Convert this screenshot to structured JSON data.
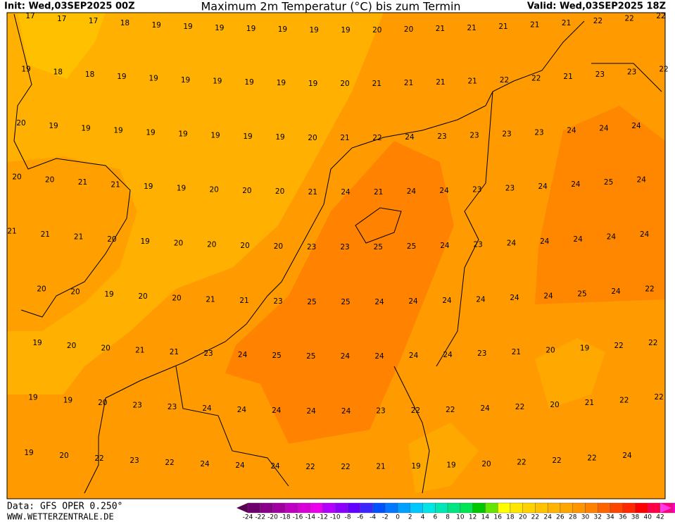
{
  "header": {
    "init": "Init: Wed,03SEP2025 00Z",
    "title": "Maximum 2m Temperatur (°C) bis zum Termin",
    "valid": "Valid: Wed,03SEP2025 18Z"
  },
  "map": {
    "rows": [
      [
        17,
        17,
        17,
        18,
        19,
        19,
        19,
        19,
        19,
        19,
        19,
        20,
        20,
        21,
        21,
        21,
        21,
        21,
        22,
        22,
        22
      ],
      [
        19,
        18,
        18,
        19,
        19,
        19,
        19,
        19,
        19,
        19,
        20,
        21,
        21,
        21,
        21,
        22,
        22,
        21,
        23,
        23,
        22
      ],
      [
        20,
        19,
        19,
        19,
        19,
        19,
        19,
        19,
        19,
        20,
        21,
        22,
        24,
        23,
        23,
        23,
        23,
        24,
        24,
        24
      ],
      [
        20,
        20,
        21,
        21,
        19,
        19,
        20,
        20,
        20,
        21,
        24,
        21,
        24,
        24,
        23,
        23,
        24,
        24,
        25,
        24
      ],
      [
        21,
        21,
        21,
        20,
        19,
        20,
        20,
        20,
        20,
        23,
        23,
        25,
        25,
        24,
        23,
        24,
        24,
        24,
        24,
        24
      ],
      [
        20,
        20,
        19,
        20,
        20,
        21,
        21,
        23,
        25,
        25,
        24,
        24,
        24,
        24,
        24,
        24,
        25,
        24,
        22
      ],
      [
        19,
        20,
        20,
        21,
        21,
        23,
        24,
        25,
        25,
        24,
        24,
        24,
        24,
        23,
        21,
        20,
        19,
        22,
        22
      ],
      [
        19,
        19,
        20,
        23,
        23,
        24,
        24,
        24,
        24,
        24,
        23,
        22,
        22,
        24,
        22,
        20,
        21,
        22,
        22
      ],
      [
        19,
        20,
        22,
        23,
        22,
        24,
        24,
        24,
        22,
        22,
        21,
        19,
        19,
        20,
        22,
        22,
        22,
        24
      ]
    ]
  },
  "footer": {
    "data": "Data: GFS OPER 0.250°",
    "site": "WWW.WETTERZENTRALE.DE"
  },
  "legend": {
    "ticks": [
      -24,
      -22,
      -20,
      -18,
      -16,
      -14,
      -12,
      -10,
      -8,
      -6,
      -4,
      -2,
      0,
      2,
      4,
      6,
      8,
      10,
      12,
      14,
      16,
      18,
      20,
      22,
      24,
      26,
      28,
      30,
      32,
      34,
      36,
      38,
      40,
      42
    ],
    "colors": [
      "#5a0050",
      "#6e006e",
      "#8a008a",
      "#a000a0",
      "#c000c0",
      "#d800d8",
      "#ec00ec",
      "#b400ff",
      "#8c00ff",
      "#6400ff",
      "#3c28ff",
      "#0050ff",
      "#0078ff",
      "#00a0ff",
      "#00c8ff",
      "#00e6e6",
      "#00e6b4",
      "#00e682",
      "#00e650",
      "#00c800",
      "#64e600",
      "#ffff00",
      "#ffe600",
      "#ffd200",
      "#ffc300",
      "#ffb400",
      "#ffa500",
      "#ff9600",
      "#ff8200",
      "#ff6400",
      "#ff4600",
      "#ff2800",
      "#ff0000",
      "#ff0046",
      "#ff0082",
      "#ff00c8",
      "#ff3ce6"
    ]
  }
}
